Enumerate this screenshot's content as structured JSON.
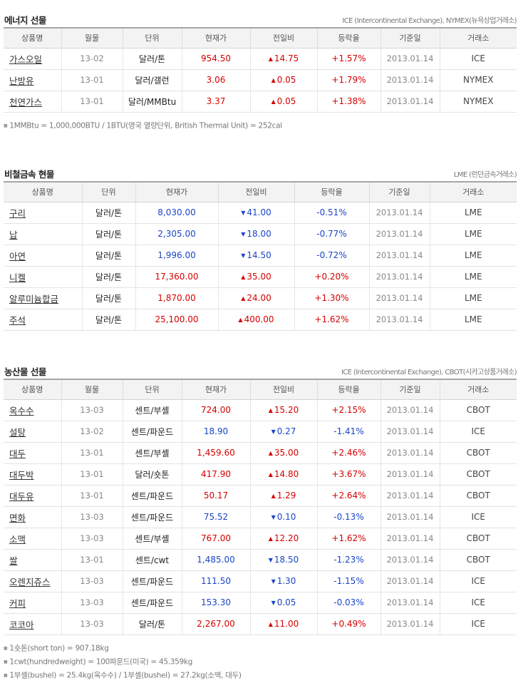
{
  "colors": {
    "up": "#d60000",
    "down": "#1a45c8",
    "header_bg": "#f3f3f3"
  },
  "energy": {
    "title": "에너지 선물",
    "source": "ICE (Intercontinental Exchange), NYMEX(뉴욕상업거래소)",
    "headers": [
      "상품명",
      "월물",
      "단위",
      "현재가",
      "전일비",
      "등락율",
      "기준일",
      "거래소"
    ],
    "rows": [
      {
        "name": "가스오일",
        "month": "13-02",
        "unit": "달러/톤",
        "price": "954.50",
        "dir": "up",
        "arrow": "▲",
        "change": "14.75",
        "rate": "+1.57%",
        "date": "2013.01.14",
        "exchange": "ICE"
      },
      {
        "name": "난방유",
        "month": "13-01",
        "unit": "달러/갤런",
        "price": "3.06",
        "dir": "up",
        "arrow": "▲",
        "change": "0.05",
        "rate": "+1.79%",
        "date": "2013.01.14",
        "exchange": "NYMEX"
      },
      {
        "name": "천연가스",
        "month": "13-01",
        "unit": "달러/MMBtu",
        "price": "3.37",
        "dir": "up",
        "arrow": "▲",
        "change": "0.05",
        "rate": "+1.38%",
        "date": "2013.01.14",
        "exchange": "NYMEX"
      }
    ],
    "notes": [
      "1MMBtu = 1,000,000BTU / 1BTU(영국 열량단위, British Thermal Unit) = 252cal"
    ]
  },
  "metals": {
    "title": "비철금속 현물",
    "source": "LME (런던금속거래소)",
    "headers": [
      "상품명",
      "단위",
      "현재가",
      "전일비",
      "등락율",
      "기준일",
      "거래소"
    ],
    "rows": [
      {
        "name": "구리",
        "unit": "달러/톤",
        "price": "8,030.00",
        "dir": "down",
        "arrow": "▼",
        "change": "41.00",
        "rate": "-0.51%",
        "date": "2013.01.14",
        "exchange": "LME"
      },
      {
        "name": "납",
        "unit": "달러/톤",
        "price": "2,305.00",
        "dir": "down",
        "arrow": "▼",
        "change": "18.00",
        "rate": "-0.77%",
        "date": "2013.01.14",
        "exchange": "LME"
      },
      {
        "name": "아연",
        "unit": "달러/톤",
        "price": "1,996.00",
        "dir": "down",
        "arrow": "▼",
        "change": "14.50",
        "rate": "-0.72%",
        "date": "2013.01.14",
        "exchange": "LME"
      },
      {
        "name": "니켈",
        "unit": "달러/톤",
        "price": "17,360.00",
        "dir": "up",
        "arrow": "▲",
        "change": "35.00",
        "rate": "+0.20%",
        "date": "2013.01.14",
        "exchange": "LME"
      },
      {
        "name": "알루미늄합금",
        "unit": "달러/톤",
        "price": "1,870.00",
        "dir": "up",
        "arrow": "▲",
        "change": "24.00",
        "rate": "+1.30%",
        "date": "2013.01.14",
        "exchange": "LME"
      },
      {
        "name": "주석",
        "unit": "달러/톤",
        "price": "25,100.00",
        "dir": "up",
        "arrow": "▲",
        "change": "400.00",
        "rate": "+1.62%",
        "date": "2013.01.14",
        "exchange": "LME"
      }
    ]
  },
  "agri": {
    "title": "농산물 선물",
    "source": "ICE (Intercontinental Exchange), CBOT(시카고상품거래소)",
    "headers": [
      "상품명",
      "월물",
      "단위",
      "현재가",
      "전일비",
      "등락율",
      "기준일",
      "거래소"
    ],
    "rows": [
      {
        "name": "옥수수",
        "month": "13-03",
        "unit": "센트/부셸",
        "price": "724.00",
        "dir": "up",
        "arrow": "▲",
        "change": "15.20",
        "rate": "+2.15%",
        "date": "2013.01.14",
        "exchange": "CBOT"
      },
      {
        "name": "설탕",
        "month": "13-02",
        "unit": "센트/파운드",
        "price": "18.90",
        "dir": "down",
        "arrow": "▼",
        "change": "0.27",
        "rate": "-1.41%",
        "date": "2013.01.14",
        "exchange": "ICE"
      },
      {
        "name": "대두",
        "month": "13-01",
        "unit": "센트/부셸",
        "price": "1,459.60",
        "dir": "up",
        "arrow": "▲",
        "change": "35.00",
        "rate": "+2.46%",
        "date": "2013.01.14",
        "exchange": "CBOT"
      },
      {
        "name": "대두박",
        "month": "13-01",
        "unit": "달러/숏톤",
        "price": "417.90",
        "dir": "up",
        "arrow": "▲",
        "change": "14.80",
        "rate": "+3.67%",
        "date": "2013.01.14",
        "exchange": "CBOT"
      },
      {
        "name": "대두유",
        "month": "13-01",
        "unit": "센트/파운드",
        "price": "50.17",
        "dir": "up",
        "arrow": "▲",
        "change": "1.29",
        "rate": "+2.64%",
        "date": "2013.01.14",
        "exchange": "CBOT"
      },
      {
        "name": "면화",
        "month": "13-03",
        "unit": "센트/파운드",
        "price": "75.52",
        "dir": "down",
        "arrow": "▼",
        "change": "0.10",
        "rate": "-0.13%",
        "date": "2013.01.14",
        "exchange": "ICE"
      },
      {
        "name": "소맥",
        "month": "13-03",
        "unit": "센트/부셸",
        "price": "767.00",
        "dir": "up",
        "arrow": "▲",
        "change": "12.20",
        "rate": "+1.62%",
        "date": "2013.01.14",
        "exchange": "CBOT"
      },
      {
        "name": "쌀",
        "month": "13-01",
        "unit": "센트/cwt",
        "price": "1,485.00",
        "dir": "down",
        "arrow": "▼",
        "change": "18.50",
        "rate": "-1.23%",
        "date": "2013.01.14",
        "exchange": "CBOT"
      },
      {
        "name": "오렌지쥬스",
        "month": "13-03",
        "unit": "센트/파운드",
        "price": "111.50",
        "dir": "down",
        "arrow": "▼",
        "change": "1.30",
        "rate": "-1.15%",
        "date": "2013.01.14",
        "exchange": "ICE"
      },
      {
        "name": "커피",
        "month": "13-03",
        "unit": "센트/파운드",
        "price": "153.30",
        "dir": "down",
        "arrow": "▼",
        "change": "0.05",
        "rate": "-0.03%",
        "date": "2013.01.14",
        "exchange": "ICE"
      },
      {
        "name": "코코아",
        "month": "13-03",
        "unit": "달러/톤",
        "price": "2,267.00",
        "dir": "up",
        "arrow": "▲",
        "change": "11.00",
        "rate": "+0.49%",
        "date": "2013.01.14",
        "exchange": "ICE"
      }
    ],
    "notes": [
      "1숏톤(short ton) = 907.18kg",
      "1cwt(hundredweight) = 100파운드(미국) = 45.359kg",
      "1부셸(bushel) = 25.4kg(옥수수) / 1부셸(bushel) = 27.2kg(소맥, 대두)"
    ]
  }
}
